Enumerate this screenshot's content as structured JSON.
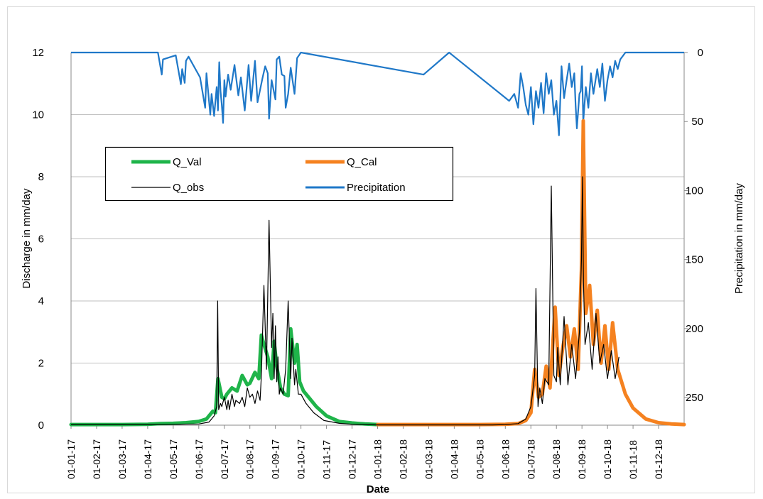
{
  "chart_data": {
    "type": "line",
    "xlabel": "Date",
    "ylabel_left": "Discharge in mm/day",
    "ylabel_right": "Precipitation in mm/day",
    "ylim_left": [
      0,
      12
    ],
    "ylim_right_inverted": [
      0,
      270
    ],
    "yticks_left": [
      "0",
      "2",
      "4",
      "6",
      "8",
      "10",
      "12"
    ],
    "yticks_right": [
      "0",
      "50",
      "100",
      "150",
      "200",
      "250"
    ],
    "x_tick_labels": [
      "01-01-17",
      "01-02-17",
      "01-03-17",
      "01-04-17",
      "01-05-17",
      "01-06-17",
      "01-07-17",
      "01-08-17",
      "01-09-17",
      "01-10-17",
      "01-11-17",
      "01-12-17",
      "01-01-18",
      "01-02-18",
      "01-03-18",
      "01-04-18",
      "01-05-18",
      "01-06-18",
      "01-07-18",
      "01-08-18",
      "01-09-18",
      "01-10-18",
      "01-11-18",
      "01-12-18"
    ],
    "grid": "horizontal",
    "legend": {
      "placement": "inside-left",
      "entries": [
        {
          "name": "Q_Val",
          "color": "#1FB44A"
        },
        {
          "name": "Q_Cal",
          "color": "#F58220"
        },
        {
          "name": "Q_obs",
          "color": "#000000"
        },
        {
          "name": "Precipitation",
          "color": "#1F78C8"
        }
      ]
    },
    "series": [
      {
        "name": "Q_Val",
        "axis": "left",
        "color": "#1FB44A",
        "x_month_index": [
          0,
          1,
          2,
          3,
          3.5,
          4,
          4.5,
          5,
          5.3,
          5.55,
          5.65,
          5.75,
          5.9,
          6,
          6.1,
          6.3,
          6.5,
          6.7,
          6.9,
          7,
          7.2,
          7.35,
          7.45,
          7.55,
          7.7,
          7.85,
          7.95,
          8.05,
          8.2,
          8.35,
          8.5,
          8.6,
          8.75,
          8.85,
          8.95,
          9.1,
          9.3,
          9.6,
          10,
          10.5,
          11,
          11.5,
          12
        ],
        "values": [
          0.02,
          0.02,
          0.02,
          0.03,
          0.05,
          0.06,
          0.08,
          0.12,
          0.2,
          0.45,
          0.4,
          1.5,
          0.9,
          0.85,
          1.0,
          1.2,
          1.1,
          1.6,
          1.3,
          1.35,
          1.7,
          1.5,
          2.9,
          2.6,
          2.2,
          1.5,
          2.7,
          1.9,
          1.2,
          1.0,
          0.95,
          3.1,
          2.0,
          2.6,
          1.4,
          1.1,
          0.9,
          0.6,
          0.3,
          0.12,
          0.07,
          0.04,
          0.02
        ]
      },
      {
        "name": "Q_Cal",
        "axis": "left",
        "color": "#F58220",
        "x_month_index": [
          12,
          13,
          14,
          15,
          16,
          17,
          17.5,
          17.8,
          18,
          18.15,
          18.3,
          18.45,
          18.6,
          18.75,
          18.95,
          19.1,
          19.25,
          19.4,
          19.55,
          19.7,
          19.85,
          19.98,
          20.05,
          20.15,
          20.3,
          20.45,
          20.6,
          20.75,
          20.9,
          21.05,
          21.2,
          21.4,
          21.7,
          22,
          22.5,
          23,
          23.5,
          24
        ],
        "values": [
          0.02,
          0.02,
          0.02,
          0.02,
          0.02,
          0.03,
          0.05,
          0.15,
          0.4,
          1.8,
          0.9,
          1.0,
          1.9,
          1.2,
          3.8,
          1.6,
          2.5,
          3.2,
          2.2,
          3.1,
          1.8,
          5.0,
          9.8,
          3.6,
          4.5,
          2.6,
          3.7,
          2.0,
          3.2,
          1.8,
          3.3,
          1.8,
          1.0,
          0.55,
          0.2,
          0.08,
          0.04,
          0.02
        ]
      },
      {
        "name": "Q_obs",
        "axis": "left",
        "color": "#000000",
        "x_month_index": [
          0,
          1,
          2,
          3,
          4,
          5,
          5.4,
          5.6,
          5.7,
          5.74,
          5.78,
          5.85,
          5.9,
          6,
          6.1,
          6.15,
          6.2,
          6.3,
          6.4,
          6.45,
          6.6,
          6.7,
          6.8,
          6.9,
          7,
          7.1,
          7.2,
          7.3,
          7.4,
          7.45,
          7.55,
          7.65,
          7.75,
          7.85,
          7.9,
          7.95,
          8.0,
          8.05,
          8.1,
          8.15,
          8.2,
          8.3,
          8.4,
          8.5,
          8.6,
          8.65,
          8.75,
          8.8,
          8.9,
          9.0,
          9.2,
          9.5,
          9.9,
          10.5,
          11,
          11.5,
          12,
          16.5,
          17,
          17.5,
          17.8,
          18.0,
          18.15,
          18.2,
          18.28,
          18.35,
          18.45,
          18.55,
          18.7,
          18.8,
          18.9,
          19.0,
          19.05,
          19.15,
          19.3,
          19.45,
          19.6,
          19.75,
          19.9,
          19.98,
          20.02,
          20.06,
          20.12,
          20.25,
          20.4,
          20.55,
          20.7,
          20.85,
          21.0,
          21.15,
          21.3,
          21.45
        ],
        "values": [
          0.02,
          0.02,
          0.02,
          0.02,
          0.03,
          0.04,
          0.1,
          0.3,
          0.6,
          4.0,
          0.5,
          0.7,
          0.6,
          0.9,
          0.5,
          0.8,
          0.5,
          1.0,
          0.6,
          0.8,
          0.7,
          0.9,
          0.6,
          1.2,
          0.9,
          1.0,
          0.7,
          1.1,
          0.8,
          1.6,
          4.5,
          1.8,
          6.6,
          2.5,
          3.6,
          1.5,
          3.2,
          1.4,
          2.2,
          1.0,
          1.2,
          1.0,
          1.8,
          4.0,
          1.5,
          2.8,
          1.3,
          1.8,
          1.0,
          1.0,
          0.7,
          0.4,
          0.15,
          0.06,
          0.03,
          0.02,
          0.01,
          0.01,
          0.02,
          0.05,
          0.2,
          0.6,
          1.6,
          4.4,
          0.6,
          1.2,
          0.7,
          1.5,
          1.3,
          7.7,
          1.6,
          1.4,
          2.5,
          1.3,
          3.5,
          1.3,
          2.6,
          1.5,
          3.0,
          5.3,
          8.0,
          4.6,
          2.6,
          3.3,
          1.8,
          3.6,
          2.0,
          2.6,
          1.5,
          2.4,
          1.5,
          2.2
        ]
      },
      {
        "name": "Precipitation",
        "axis": "right-inverted",
        "color": "#1F78C8",
        "x_month_index": [
          0,
          0.7,
          1.9,
          3.4,
          3.55,
          3.6,
          4.1,
          4.3,
          4.35,
          4.45,
          4.5,
          4.6,
          5.05,
          5.25,
          5.3,
          5.45,
          5.5,
          5.6,
          5.7,
          5.75,
          5.8,
          5.85,
          5.9,
          5.95,
          6.0,
          6.05,
          6.15,
          6.25,
          6.4,
          6.55,
          6.65,
          6.8,
          6.95,
          7.05,
          7.2,
          7.3,
          7.5,
          7.6,
          7.7,
          7.75,
          7.85,
          8.0,
          8.05,
          8.15,
          8.25,
          8.35,
          8.4,
          8.5,
          8.6,
          8.75,
          8.85,
          9.0,
          13.8,
          14.8,
          17.15,
          17.35,
          17.5,
          17.6,
          17.7,
          17.8,
          17.9,
          18.0,
          18.1,
          18.2,
          18.3,
          18.4,
          18.5,
          18.6,
          18.7,
          18.8,
          18.9,
          19.0,
          19.1,
          19.2,
          19.3,
          19.4,
          19.5,
          19.6,
          19.7,
          19.75,
          19.8,
          19.9,
          19.95,
          20.0,
          20.05,
          20.15,
          20.25,
          20.35,
          20.45,
          20.55,
          20.6,
          20.7,
          20.8,
          20.9,
          21.0,
          21.1,
          21.2,
          21.3,
          21.4,
          21.5,
          21.7,
          24
        ],
        "values": [
          0,
          0,
          0,
          0,
          16,
          5,
          2,
          23,
          12,
          22,
          6,
          3,
          18,
          40,
          15,
          45,
          30,
          46,
          25,
          42,
          7,
          28,
          38,
          51,
          20,
          32,
          16,
          27,
          9,
          31,
          18,
          42,
          9,
          35,
          6,
          36,
          18,
          10,
          15,
          48,
          20,
          34,
          5,
          3,
          16,
          17,
          40,
          30,
          11,
          30,
          4,
          0,
          16,
          0,
          35,
          30,
          40,
          15,
          25,
          38,
          45,
          25,
          52,
          28,
          40,
          22,
          44,
          15,
          30,
          20,
          45,
          35,
          60,
          10,
          33,
          20,
          8,
          25,
          15,
          38,
          55,
          30,
          28,
          10,
          50,
          25,
          40,
          15,
          30,
          18,
          12,
          25,
          8,
          35,
          20,
          10,
          18,
          6,
          12,
          5,
          0,
          0
        ]
      }
    ]
  }
}
